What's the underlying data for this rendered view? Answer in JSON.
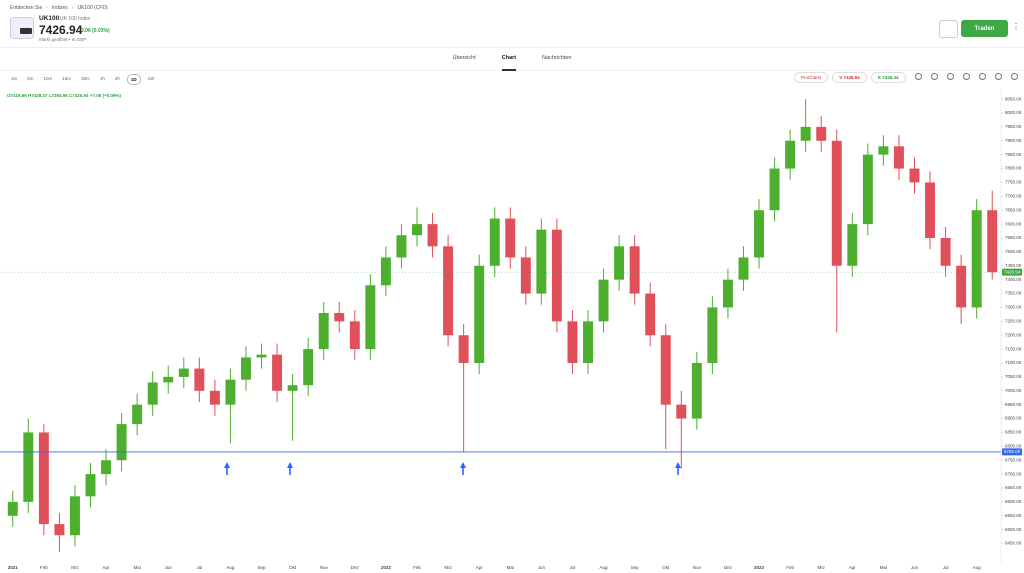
{
  "breadcrumb": [
    "Entdecken Sie",
    "Indizes",
    "UK100 (CFD)"
  ],
  "instrument": {
    "symbol": "UK100",
    "name": "UK 100 Index",
    "price": "7426.94",
    "change": "3.06 (0.03%)",
    "status": "Markt geöffnet • In GBP"
  },
  "trade_button": "Traden",
  "tabs": [
    "Übersicht",
    "Chart",
    "Nachrichten"
  ],
  "timeframes": [
    "1m",
    "5m",
    "10m",
    "15m",
    "30m",
    "1h",
    "4h",
    "1D",
    "1W"
  ],
  "toolbar": [
    "ProCharts",
    "V 7426.94",
    "K 7428.44"
  ],
  "ohlc_line": "O7419.65 H7428.37 L7393.95 C7426.94 +7.06 (+0.09%)",
  "chart_data": {
    "type": "candlestick",
    "categories": [
      "2021",
      null,
      "Feb",
      null,
      "Mrz",
      null,
      "Apr",
      null,
      "Mai",
      null,
      "Jun",
      null,
      "Jul",
      null,
      "Aug",
      null,
      "Sep",
      null,
      "Okt",
      null,
      "Nov",
      null,
      "Dez",
      null,
      "2022",
      null,
      "Feb",
      null,
      "Mrz",
      null,
      "Apr",
      null,
      "Mai",
      null,
      "Jun",
      null,
      "Jul",
      null,
      "Aug",
      null,
      "Sep",
      null,
      "Okt",
      null,
      "Nov",
      null,
      "Dez",
      null,
      "2023",
      null,
      "Feb",
      null,
      "Mrz",
      null,
      "Apr",
      null,
      "Mai",
      null,
      "Jun",
      null,
      "Jul",
      null,
      "Aug",
      null
    ],
    "open": [
      6550,
      6600,
      6850,
      6520,
      6480,
      6620,
      6700,
      6750,
      6880,
      6950,
      7030,
      7050,
      7080,
      7000,
      6950,
      7040,
      7120,
      7130,
      7000,
      7020,
      7150,
      7280,
      7250,
      7150,
      7380,
      7480,
      7560,
      7600,
      7520,
      7200,
      7100,
      7450,
      7620,
      7480,
      7350,
      7580,
      7250,
      7100,
      7250,
      7400,
      7520,
      7350,
      7200,
      6950,
      6900,
      7100,
      7300,
      7400,
      7480,
      7650,
      7800,
      7900,
      7950,
      7900,
      7450,
      7600,
      7850,
      7880,
      7800,
      7750,
      7550,
      7450,
      7300,
      7650
    ],
    "high": [
      6640,
      6900,
      6880,
      6560,
      6660,
      6740,
      6790,
      6920,
      6990,
      7070,
      7090,
      7120,
      7120,
      7040,
      7080,
      7160,
      7170,
      7170,
      7060,
      7190,
      7320,
      7320,
      7290,
      7420,
      7520,
      7600,
      7660,
      7640,
      7560,
      7240,
      7490,
      7660,
      7660,
      7520,
      7620,
      7620,
      7290,
      7290,
      7440,
      7560,
      7560,
      7390,
      7240,
      7000,
      7140,
      7340,
      7440,
      7520,
      7690,
      7840,
      7940,
      8050,
      7990,
      7940,
      7640,
      7890,
      7920,
      7920,
      7840,
      7790,
      7590,
      7490,
      7690,
      7720
    ],
    "low": [
      6510,
      6560,
      6480,
      6420,
      6440,
      6580,
      6660,
      6710,
      6840,
      6910,
      6990,
      7010,
      6960,
      6910,
      6810,
      7000,
      7080,
      6960,
      6820,
      6980,
      7110,
      7210,
      7110,
      7110,
      7340,
      7440,
      7520,
      7480,
      7160,
      6780,
      7060,
      7410,
      7440,
      7310,
      7310,
      7210,
      7060,
      7060,
      7210,
      7360,
      7310,
      7160,
      6790,
      6720,
      6860,
      7060,
      7260,
      7360,
      7440,
      7610,
      7760,
      7860,
      7860,
      7210,
      7410,
      7560,
      7810,
      7760,
      7710,
      7510,
      7410,
      7240,
      7260,
      7400
    ],
    "close": [
      6600,
      6850,
      6520,
      6480,
      6620,
      6700,
      6750,
      6880,
      6950,
      7030,
      7050,
      7080,
      7000,
      6950,
      7040,
      7120,
      7130,
      7000,
      7020,
      7150,
      7280,
      7250,
      7150,
      7380,
      7480,
      7560,
      7600,
      7520,
      7200,
      7100,
      7450,
      7620,
      7480,
      7350,
      7580,
      7250,
      7100,
      7250,
      7400,
      7520,
      7350,
      7200,
      6950,
      6900,
      7100,
      7300,
      7400,
      7480,
      7650,
      7800,
      7900,
      7950,
      7900,
      7450,
      7600,
      7850,
      7880,
      7800,
      7750,
      7550,
      7450,
      7300,
      7650,
      7426.94
    ],
    "up_color": "#4caf2e",
    "down_color": "#e0505a",
    "ylim": [
      6380,
      8090
    ],
    "yticks": [
      {
        "value": 6450,
        "label": "6450.00"
      },
      {
        "value": 6500,
        "label": "6500.00"
      },
      {
        "value": 6550,
        "label": "6550.00"
      },
      {
        "value": 6600,
        "label": "6600.00"
      },
      {
        "value": 6650,
        "label": "6650.00"
      },
      {
        "value": 6700,
        "label": "6700.00"
      },
      {
        "value": 6750,
        "label": "6750.00"
      },
      {
        "value": 6800,
        "label": "6800.00"
      },
      {
        "value": 6850,
        "label": "6850.00"
      },
      {
        "value": 6900,
        "label": "6900.00"
      },
      {
        "value": 6950,
        "label": "6950.00"
      },
      {
        "value": 7000,
        "label": "7000.00"
      },
      {
        "value": 7050,
        "label": "7050.00"
      },
      {
        "value": 7100,
        "label": "7100.00"
      },
      {
        "value": 7150,
        "label": "7150.00"
      },
      {
        "value": 7200,
        "label": "7200.00"
      },
      {
        "value": 7250,
        "label": "7250.00"
      },
      {
        "value": 7300,
        "label": "7300.00"
      },
      {
        "value": 7350,
        "label": "7350.00"
      },
      {
        "value": 7400,
        "label": "7400.00"
      },
      {
        "value": 7450,
        "label": "7450.00"
      },
      {
        "value": 7500,
        "label": "7500.00"
      },
      {
        "value": 7550,
        "label": "7550.00"
      },
      {
        "value": 7600,
        "label": "7600.00"
      },
      {
        "value": 7650,
        "label": "7650.00"
      },
      {
        "value": 7700,
        "label": "7700.00"
      },
      {
        "value": 7750,
        "label": "7750.00"
      },
      {
        "value": 7800,
        "label": "7800.00"
      },
      {
        "value": 7850,
        "label": "7850.00"
      },
      {
        "value": 7900,
        "label": "7900.00"
      },
      {
        "value": 7950,
        "label": "7950.00"
      },
      {
        "value": 8000,
        "label": "8000.00"
      },
      {
        "value": 8050,
        "label": "8050.00"
      }
    ],
    "hline": {
      "value": 6780,
      "label": "6780.00",
      "color": "#3366ee"
    },
    "last_price": {
      "value": 7426.94,
      "label": "7426.94",
      "color": "#3ea845"
    }
  }
}
